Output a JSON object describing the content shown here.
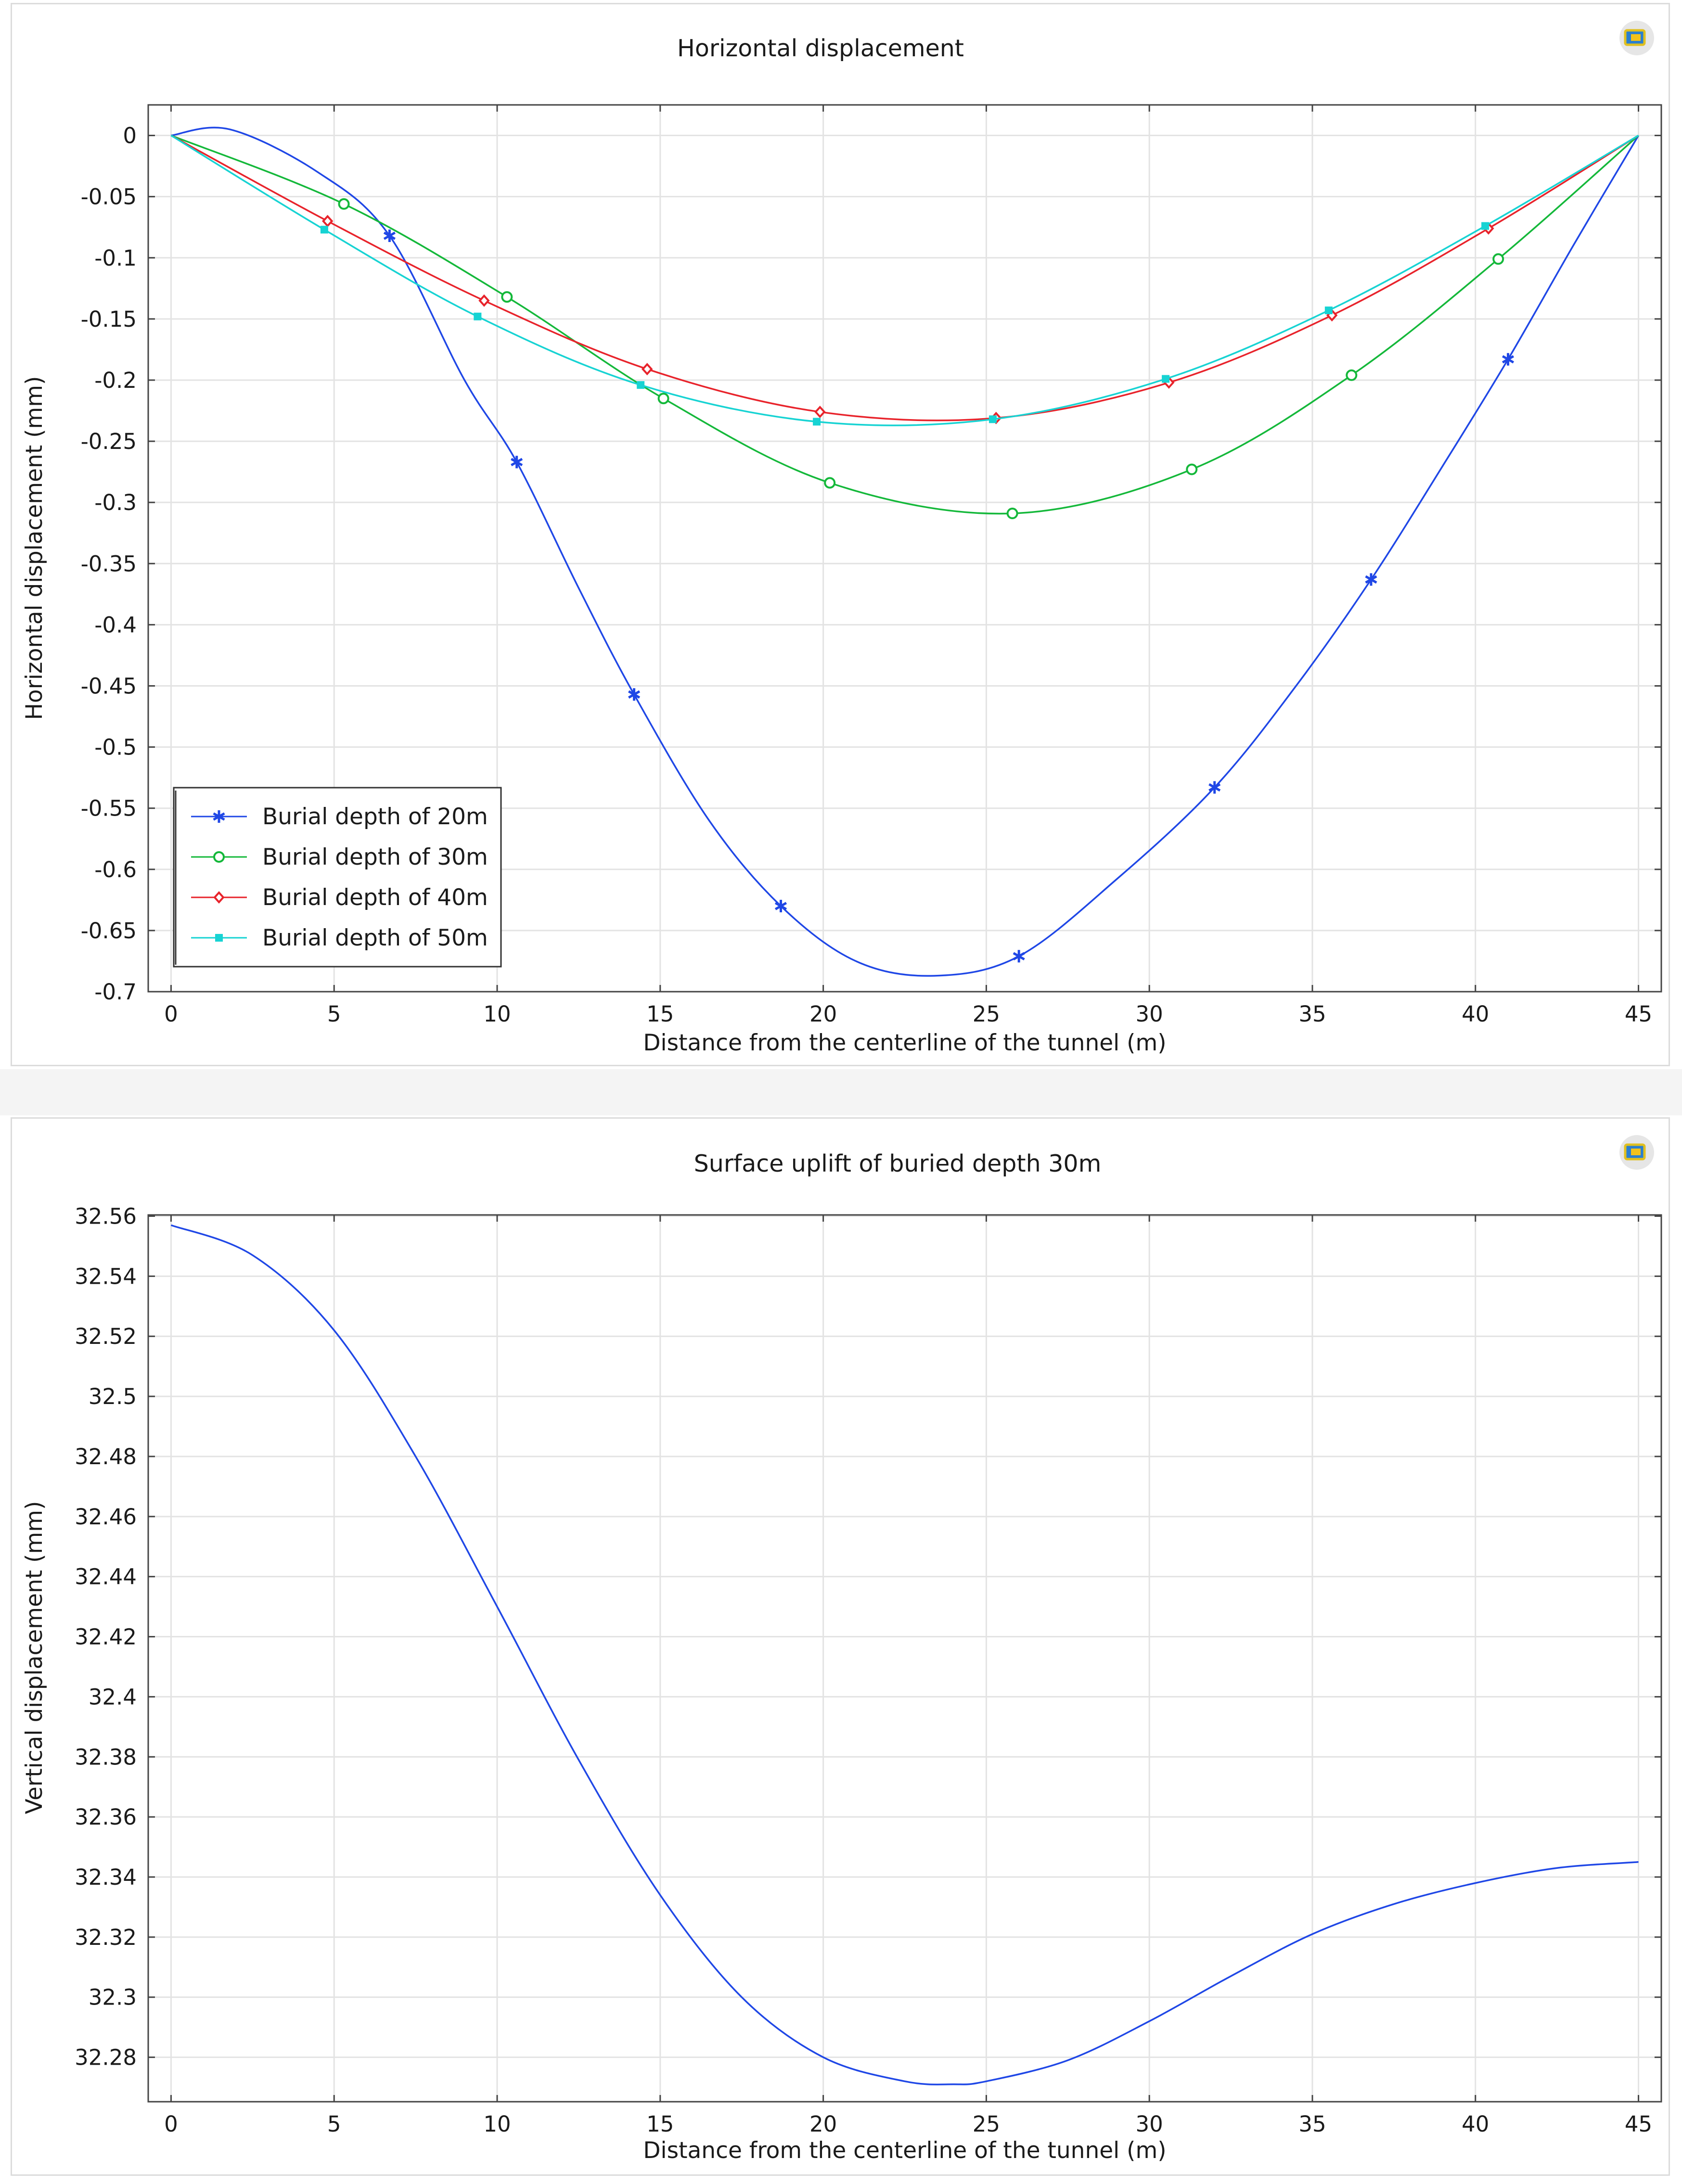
{
  "colors": {
    "blue": "#1f47e6",
    "green": "#14b83a",
    "red": "#e8232b",
    "cyan": "#17d3d3"
  },
  "chart_data": [
    {
      "type": "line",
      "title": "Horizontal displacement",
      "xlabel": "Distance from the centerline of the tunnel (m)",
      "ylabel": "Horizontal displacement (mm)",
      "xlim": [
        -0.7,
        45.7
      ],
      "ylim": [
        -0.7,
        0.025
      ],
      "xticks": [
        0,
        5,
        10,
        15,
        20,
        25,
        30,
        35,
        40,
        45
      ],
      "xtick_labels": [
        "0",
        "5",
        "10",
        "15",
        "20",
        "25",
        "30",
        "35",
        "40",
        "45"
      ],
      "yticks": [
        0,
        -0.05,
        -0.1,
        -0.15,
        -0.2,
        -0.25,
        -0.3,
        -0.35,
        -0.4,
        -0.45,
        -0.5,
        -0.55,
        -0.6,
        -0.65,
        -0.7
      ],
      "ytick_labels": [
        "0",
        "-0.05",
        "-0.1",
        "-0.15",
        "-0.2",
        "-0.25",
        "-0.3",
        "-0.35",
        "-0.4",
        "-0.45",
        "-0.5",
        "-0.55",
        "-0.6",
        "-0.65",
        "-0.7"
      ],
      "grid": true,
      "legend_position": "bottom-left",
      "series": [
        {
          "name": "Burial depth of 20m",
          "color": "#1f47e6",
          "marker": "star",
          "x": [
            0,
            1.8,
            4.5,
            6.7,
            9,
            10.6,
            12.5,
            14.2,
            16.5,
            18.7,
            21,
            23.4,
            26,
            29,
            32,
            34.5,
            36.8,
            39,
            41,
            43,
            45
          ],
          "y": [
            0,
            0.005,
            -0.03,
            -0.082,
            -0.2,
            -0.267,
            -0.37,
            -0.457,
            -0.56,
            -0.63,
            -0.675,
            -0.687,
            -0.671,
            -0.608,
            -0.533,
            -0.45,
            -0.363,
            -0.27,
            -0.183,
            -0.09,
            0
          ],
          "markers_x": [
            6.7,
            10.6,
            14.2,
            18.7,
            26,
            32,
            36.8,
            41
          ],
          "markers_y": [
            -0.082,
            -0.267,
            -0.457,
            -0.63,
            -0.671,
            -0.533,
            -0.363,
            -0.183
          ]
        },
        {
          "name": "Burial depth of 30m",
          "color": "#14b83a",
          "marker": "circle",
          "x": [
            0,
            5.3,
            10.3,
            15.1,
            20.2,
            25.8,
            31.3,
            36.2,
            40.7,
            45
          ],
          "y": [
            0,
            -0.056,
            -0.132,
            -0.215,
            -0.284,
            -0.309,
            -0.273,
            -0.196,
            -0.101,
            0
          ],
          "markers_x": [
            5.3,
            10.3,
            15.1,
            20.2,
            25.8,
            31.3,
            36.2,
            40.7
          ],
          "markers_y": [
            -0.056,
            -0.132,
            -0.215,
            -0.284,
            -0.309,
            -0.273,
            -0.196,
            -0.101
          ]
        },
        {
          "name": "Burial depth of 40m",
          "color": "#e8232b",
          "marker": "diamond",
          "x": [
            0,
            4.8,
            9.6,
            14.6,
            19.9,
            25.3,
            30.6,
            35.6,
            40.4,
            45
          ],
          "y": [
            0,
            -0.07,
            -0.135,
            -0.191,
            -0.226,
            -0.231,
            -0.202,
            -0.147,
            -0.076,
            0
          ],
          "markers_x": [
            4.8,
            9.6,
            14.6,
            19.9,
            25.3,
            30.6,
            35.6,
            40.4
          ],
          "markers_y": [
            -0.07,
            -0.135,
            -0.191,
            -0.226,
            -0.231,
            -0.202,
            -0.147,
            -0.076
          ]
        },
        {
          "name": "Burial depth of 50m",
          "color": "#17d3d3",
          "marker": "square",
          "x": [
            0,
            4.7,
            9.4,
            14.4,
            19.8,
            25.2,
            30.5,
            35.5,
            40.3,
            45
          ],
          "y": [
            0,
            -0.077,
            -0.148,
            -0.204,
            -0.234,
            -0.232,
            -0.199,
            -0.143,
            -0.074,
            0
          ],
          "markers_x": [
            4.7,
            9.4,
            14.4,
            19.8,
            25.2,
            30.5,
            35.5,
            40.3
          ],
          "markers_y": [
            -0.077,
            -0.148,
            -0.204,
            -0.234,
            -0.232,
            -0.199,
            -0.143,
            -0.074
          ]
        }
      ]
    },
    {
      "type": "line",
      "title": "Surface uplift of buried depth 30m",
      "xlabel": "Distance from the centerline of the tunnel (m)",
      "ylabel": "Vertical displacement (mm)",
      "xlim": [
        -0.7,
        45.7
      ],
      "ylim": [
        32.2652,
        32.5604
      ],
      "xticks": [
        0,
        5,
        10,
        15,
        20,
        25,
        30,
        35,
        40,
        45
      ],
      "xtick_labels": [
        "0",
        "5",
        "10",
        "15",
        "20",
        "25",
        "30",
        "35",
        "40",
        "45"
      ],
      "yticks": [
        32.56,
        32.54,
        32.52,
        32.5,
        32.48,
        32.46,
        32.44,
        32.42,
        32.4,
        32.38,
        32.36,
        32.34,
        32.32,
        32.3,
        32.28
      ],
      "ytick_labels": [
        "32.56",
        "32.54",
        "32.52",
        "32.5",
        "32.48",
        "32.46",
        "32.44",
        "32.42",
        "32.4",
        "32.38",
        "32.36",
        "32.34",
        "32.32",
        "32.3",
        "32.28"
      ],
      "grid": true,
      "series": [
        {
          "name": "Burial depth of 30m",
          "color": "#1f47e6",
          "marker": "none",
          "x": [
            0,
            2.5,
            5,
            7.5,
            10,
            12.5,
            15,
            17.5,
            20,
            22.5,
            24,
            25,
            27.5,
            30,
            32.5,
            35,
            37.5,
            40,
            42.5,
            45
          ],
          "y": [
            32.557,
            32.547,
            32.522,
            32.48,
            32.43,
            32.379,
            32.334,
            32.3,
            32.28,
            32.272,
            32.271,
            32.272,
            32.279,
            32.292,
            32.307,
            32.321,
            32.331,
            32.338,
            32.343,
            32.345
          ]
        }
      ]
    }
  ]
}
